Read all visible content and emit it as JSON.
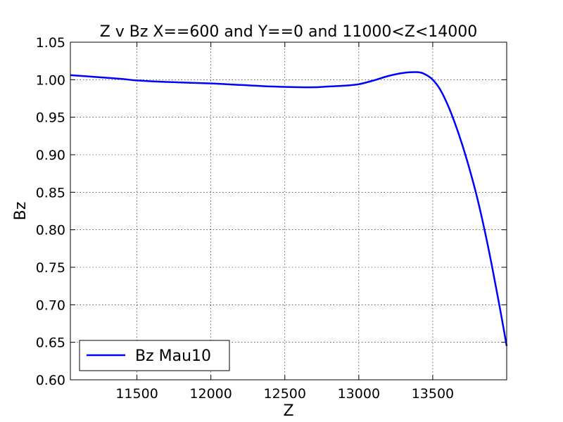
{
  "chart_data": {
    "type": "line",
    "title": "Z v Bz X==600 and Y==0 and 11000<Z<14000",
    "xlabel": "Z",
    "ylabel": "Bz",
    "xlim": [
      11050,
      14000
    ],
    "ylim": [
      0.6,
      1.05
    ],
    "xticks": [
      11500,
      12000,
      12500,
      13000,
      13500
    ],
    "xtick_labels": [
      "11500",
      "12000",
      "12500",
      "13000",
      "13500"
    ],
    "yticks": [
      0.6,
      0.65,
      0.7,
      0.75,
      0.8,
      0.85,
      0.9,
      0.95,
      1.0,
      1.05
    ],
    "ytick_labels": [
      "0.60",
      "0.65",
      "0.70",
      "0.75",
      "0.80",
      "0.85",
      "0.90",
      "0.95",
      "1.00",
      "1.05"
    ],
    "grid": true,
    "legend_position": "lower-left",
    "series": [
      {
        "name": "Bz Mau10",
        "color": "#0000ff",
        "points": [
          [
            11050,
            1.006
          ],
          [
            11200,
            1.004
          ],
          [
            11400,
            1.001
          ],
          [
            11500,
            0.999
          ],
          [
            11700,
            0.997
          ],
          [
            12000,
            0.995
          ],
          [
            12200,
            0.993
          ],
          [
            12400,
            0.991
          ],
          [
            12600,
            0.99
          ],
          [
            12700,
            0.99
          ],
          [
            12800,
            0.991
          ],
          [
            12900,
            0.992
          ],
          [
            13000,
            0.994
          ],
          [
            13100,
            0.999
          ],
          [
            13200,
            1.005
          ],
          [
            13300,
            1.009
          ],
          [
            13400,
            1.01
          ],
          [
            13450,
            1.007
          ],
          [
            13500,
            1.0
          ],
          [
            13550,
            0.987
          ],
          [
            13600,
            0.967
          ],
          [
            13650,
            0.942
          ],
          [
            13700,
            0.913
          ],
          [
            13750,
            0.88
          ],
          [
            13800,
            0.843
          ],
          [
            13850,
            0.8
          ],
          [
            13900,
            0.752
          ],
          [
            13950,
            0.7
          ],
          [
            14000,
            0.645
          ]
        ]
      }
    ]
  }
}
